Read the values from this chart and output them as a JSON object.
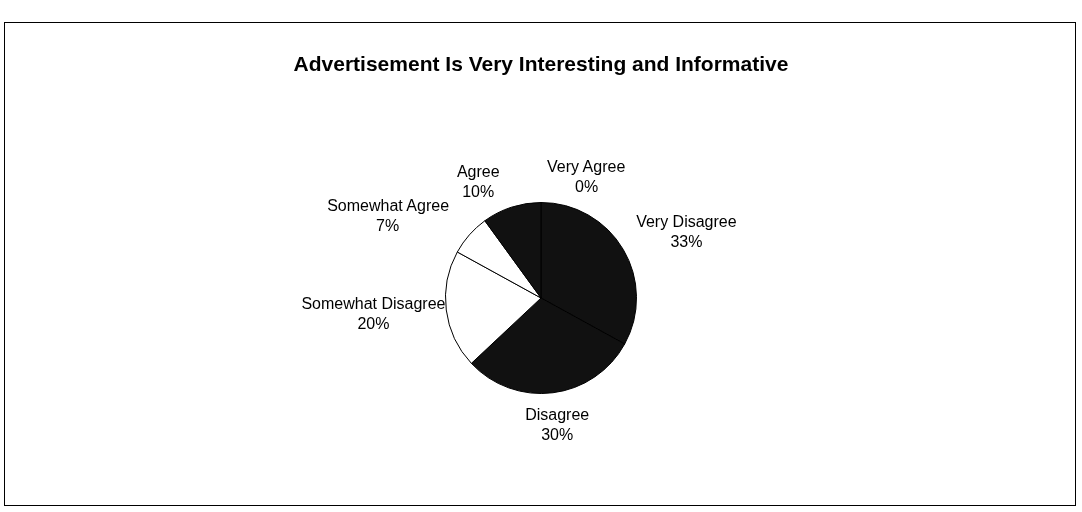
{
  "chart_data": {
    "type": "pie",
    "title": "Advertisement Is Very Interesting and Informative",
    "categories": [
      "Very Agree",
      "Very Disagree",
      "Disagree",
      "Somewhat Disagree",
      "Somewhat Agree",
      "Agree"
    ],
    "values": [
      0,
      33,
      30,
      20,
      7,
      10
    ],
    "colors": [
      "#111111",
      "#111111",
      "#111111",
      "#ffffff",
      "#ffffff",
      "#111111"
    ],
    "value_labels": [
      "0%",
      "33%",
      "30%",
      "20%",
      "7%",
      "10%"
    ],
    "legend": false
  }
}
